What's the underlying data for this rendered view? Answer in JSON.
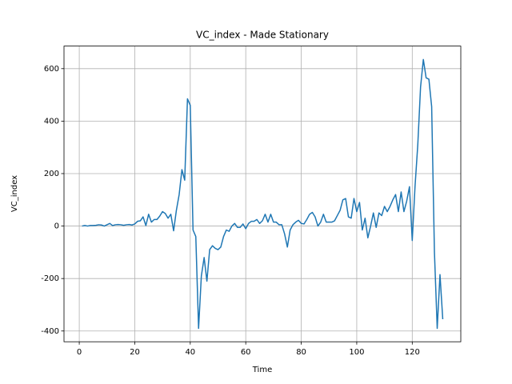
{
  "chart_data": {
    "type": "line",
    "title": "VC_index - Made Stationary",
    "xlabel": "Time",
    "ylabel": "VC_index",
    "x": [
      1,
      2,
      3,
      4,
      5,
      6,
      7,
      8,
      9,
      10,
      11,
      12,
      13,
      14,
      15,
      16,
      17,
      18,
      19,
      20,
      21,
      22,
      23,
      24,
      25,
      26,
      27,
      28,
      29,
      30,
      31,
      32,
      33,
      34,
      35,
      36,
      37,
      38,
      39,
      40,
      41,
      42,
      43,
      44,
      45,
      46,
      47,
      48,
      49,
      50,
      51,
      52,
      53,
      54,
      55,
      56,
      57,
      58,
      59,
      60,
      61,
      62,
      63,
      64,
      65,
      66,
      67,
      68,
      69,
      70,
      71,
      72,
      73,
      74,
      75,
      76,
      77,
      78,
      79,
      80,
      81,
      82,
      83,
      84,
      85,
      86,
      87,
      88,
      89,
      90,
      91,
      92,
      93,
      94,
      95,
      96,
      97,
      98,
      99,
      100,
      101,
      102,
      103,
      104,
      105,
      106,
      107,
      108,
      109,
      110,
      111,
      112,
      113,
      114,
      115,
      116,
      117,
      118,
      119,
      120,
      121,
      122,
      123,
      124,
      125,
      126,
      127,
      128,
      129,
      130,
      131
    ],
    "series": [
      {
        "name": "VC_index",
        "color": "#1f77b4",
        "values": [
          0,
          2,
          0,
          2,
          2,
          3,
          5,
          4,
          0,
          5,
          10,
          2,
          5,
          6,
          5,
          3,
          5,
          6,
          4,
          8,
          18,
          20,
          35,
          2,
          45,
          15,
          25,
          25,
          38,
          55,
          48,
          30,
          45,
          -18,
          60,
          120,
          215,
          175,
          485,
          460,
          -15,
          -40,
          -390,
          -190,
          -120,
          -210,
          -90,
          -75,
          -85,
          -90,
          -80,
          -40,
          -15,
          -20,
          0,
          10,
          -5,
          -5,
          8,
          -10,
          10,
          18,
          18,
          25,
          10,
          20,
          45,
          15,
          45,
          15,
          15,
          5,
          5,
          -30,
          -80,
          -15,
          5,
          15,
          22,
          10,
          8,
          25,
          45,
          52,
          35,
          0,
          15,
          45,
          15,
          15,
          15,
          20,
          40,
          60,
          100,
          105,
          35,
          30,
          105,
          55,
          90,
          -15,
          30,
          -45,
          0,
          50,
          -5,
          50,
          40,
          75,
          55,
          75,
          100,
          120,
          55,
          130,
          55,
          95,
          150,
          -55,
          150,
          310,
          530,
          635,
          565,
          560,
          455,
          -100,
          -390,
          -185,
          -355
        ]
      }
    ],
    "xlim": [
      -5.5,
      137.5
    ],
    "ylim": [
      -441,
      686
    ],
    "xticks": [
      0,
      20,
      40,
      60,
      80,
      100,
      120
    ],
    "yticks": [
      -400,
      -200,
      0,
      200,
      400,
      600
    ],
    "grid": true
  }
}
